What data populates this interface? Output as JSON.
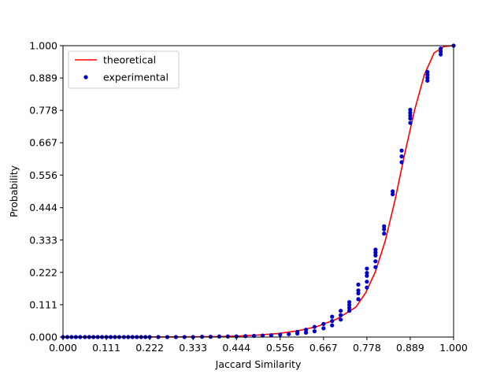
{
  "chart_data": {
    "type": "line",
    "title": "",
    "xlabel": "Jaccard Similarity",
    "ylabel": "Probability",
    "xlim": [
      0,
      1
    ],
    "ylim": [
      0,
      1
    ],
    "grid": false,
    "legend_position": "top-left",
    "xticks": [
      "0.000",
      "0.111",
      "0.222",
      "0.333",
      "0.444",
      "0.556",
      "0.667",
      "0.778",
      "0.889",
      "1.000"
    ],
    "yticks": [
      "0.000",
      "0.111",
      "0.222",
      "0.333",
      "0.444",
      "0.556",
      "0.667",
      "0.778",
      "0.889",
      "1.000"
    ],
    "series": [
      {
        "name": "theoretical",
        "kind": "line",
        "color": "#ff0000",
        "x": [
          0,
          0.3,
          0.4,
          0.45,
          0.5,
          0.55,
          0.6,
          0.65,
          0.7,
          0.75,
          0.775,
          0.8,
          0.825,
          0.85,
          0.875,
          0.9,
          0.925,
          0.95,
          0.975,
          1.0
        ],
        "y": [
          0,
          0.0004,
          0.0017,
          0.0035,
          0.0068,
          0.012,
          0.021,
          0.036,
          0.061,
          0.103,
          0.152,
          0.225,
          0.33,
          0.47,
          0.63,
          0.778,
          0.9,
          0.975,
          0.997,
          1.0
        ]
      },
      {
        "name": "experimental",
        "kind": "scatter",
        "color": "#0000cc",
        "x": [
          0.0,
          0.011,
          0.022,
          0.033,
          0.044,
          0.056,
          0.067,
          0.078,
          0.089,
          0.1,
          0.111,
          0.122,
          0.133,
          0.144,
          0.156,
          0.167,
          0.178,
          0.189,
          0.2,
          0.211,
          0.222,
          0.244,
          0.267,
          0.289,
          0.311,
          0.333,
          0.356,
          0.378,
          0.4,
          0.422,
          0.444,
          0.467,
          0.489,
          0.511,
          0.533,
          0.556,
          0.578,
          0.6,
          0.6,
          0.622,
          0.622,
          0.644,
          0.644,
          0.667,
          0.667,
          0.689,
          0.689,
          0.689,
          0.711,
          0.711,
          0.711,
          0.733,
          0.733,
          0.733,
          0.733,
          0.756,
          0.756,
          0.756,
          0.756,
          0.778,
          0.778,
          0.778,
          0.778,
          0.778,
          0.8,
          0.8,
          0.8,
          0.8,
          0.8,
          0.822,
          0.822,
          0.822,
          0.844,
          0.844,
          0.867,
          0.867,
          0.867,
          0.889,
          0.889,
          0.889,
          0.889,
          0.889,
          0.933,
          0.933,
          0.933,
          0.933,
          0.967,
          0.967,
          0.967,
          1.0
        ],
        "y": [
          0,
          0,
          0,
          0,
          0,
          0,
          0,
          0,
          0,
          0,
          0,
          0,
          0,
          0,
          0,
          0,
          0,
          0,
          0,
          0,
          0,
          0,
          0,
          0,
          0,
          0,
          0.001,
          0.001,
          0.002,
          0.002,
          0.002,
          0.003,
          0.004,
          0.005,
          0.006,
          0.008,
          0.01,
          0.012,
          0.018,
          0.015,
          0.025,
          0.02,
          0.035,
          0.03,
          0.045,
          0.04,
          0.055,
          0.07,
          0.06,
          0.075,
          0.09,
          0.09,
          0.1,
          0.11,
          0.12,
          0.13,
          0.15,
          0.16,
          0.18,
          0.17,
          0.19,
          0.21,
          0.22,
          0.235,
          0.24,
          0.26,
          0.28,
          0.29,
          0.3,
          0.355,
          0.37,
          0.38,
          0.49,
          0.5,
          0.6,
          0.62,
          0.64,
          0.735,
          0.75,
          0.76,
          0.77,
          0.78,
          0.88,
          0.89,
          0.9,
          0.91,
          0.97,
          0.98,
          0.99,
          1.0
        ]
      }
    ]
  }
}
